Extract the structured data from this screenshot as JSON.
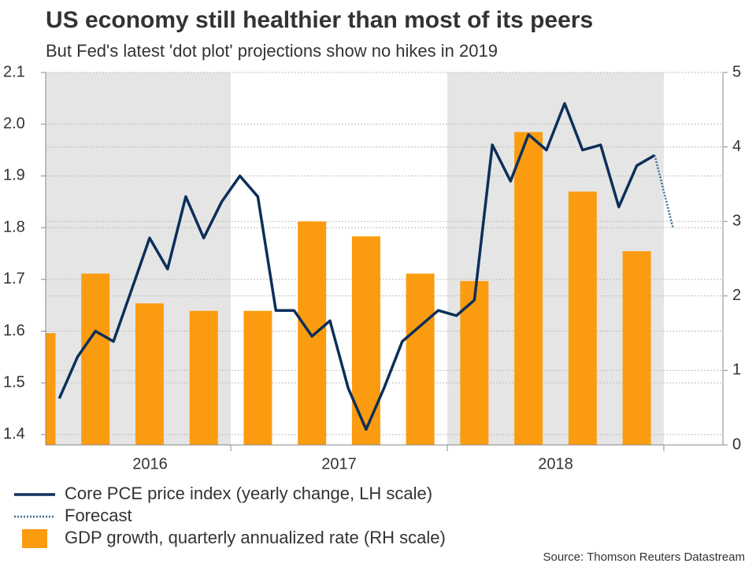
{
  "chart_data": {
    "type": "combo",
    "title": "US economy still healthier than most of its peers",
    "subtitle": "But Fed's latest 'dot plot' projections show no hikes in 2019",
    "source": "Source: Thomson Reuters Datastream",
    "xlim": [
      2016.145,
      2019.273
    ],
    "xticks": [
      {
        "value": 2016.5,
        "label": "2016"
      },
      {
        "value": 2017.5,
        "label": "2017"
      },
      {
        "value": 2018.5,
        "label": "2018"
      }
    ],
    "shade_alternate": true,
    "ylim": [
      1.38,
      2.1
    ],
    "yticks": [
      1.4,
      1.5,
      1.6,
      1.7,
      1.8,
      1.9,
      {
        "value": 2,
        "label": "2.0"
      },
      2.1
    ],
    "y2lim": [
      0,
      5
    ],
    "y2ticks": [
      0,
      1,
      2,
      3,
      4,
      5
    ],
    "grid": true,
    "series": [
      {
        "name": "Core PCE price index (yearly change, LH scale)",
        "type": "line",
        "style": "solid",
        "color": "#0d2f5a",
        "x": [
          2016.208,
          2016.292,
          2016.375,
          2016.458,
          2016.542,
          2016.625,
          2016.708,
          2016.792,
          2016.875,
          2016.958,
          2017.042,
          2017.125,
          2017.208,
          2017.292,
          2017.375,
          2017.458,
          2017.542,
          2017.625,
          2017.708,
          2017.792,
          2017.875,
          2017.958,
          2018.042,
          2018.125,
          2018.208,
          2018.292,
          2018.375,
          2018.458,
          2018.542,
          2018.625,
          2018.708,
          2018.792,
          2018.875,
          2018.958
        ],
        "values": [
          1.47,
          1.55,
          1.6,
          1.58,
          1.68,
          1.78,
          1.72,
          1.86,
          1.78,
          1.85,
          1.9,
          1.86,
          1.64,
          1.64,
          1.59,
          1.62,
          1.49,
          1.41,
          1.49,
          1.58,
          1.61,
          1.64,
          1.63,
          1.66,
          1.96,
          1.89,
          1.98,
          1.95,
          2.04,
          1.95,
          1.96,
          1.84,
          1.92,
          1.94
        ]
      },
      {
        "name": "Forecast",
        "type": "line",
        "style": "dotted",
        "color": "#3d6d8f",
        "x": [
          2018.958,
          2019.042
        ],
        "values": [
          1.94,
          1.8
        ]
      },
      {
        "name": "GDP growth, quarterly annualized rate (RH scale)",
        "type": "bar",
        "axis": "y2",
        "color": "#fb9c10",
        "x": [
          2016.125,
          2016.375,
          2016.625,
          2016.875,
          2017.125,
          2017.375,
          2017.625,
          2017.875,
          2018.125,
          2018.375,
          2018.625,
          2018.875
        ],
        "values": [
          1.5,
          2.3,
          1.9,
          1.8,
          1.8,
          3.0,
          2.8,
          2.3,
          2.2,
          4.2,
          3.4,
          2.6
        ]
      }
    ]
  }
}
